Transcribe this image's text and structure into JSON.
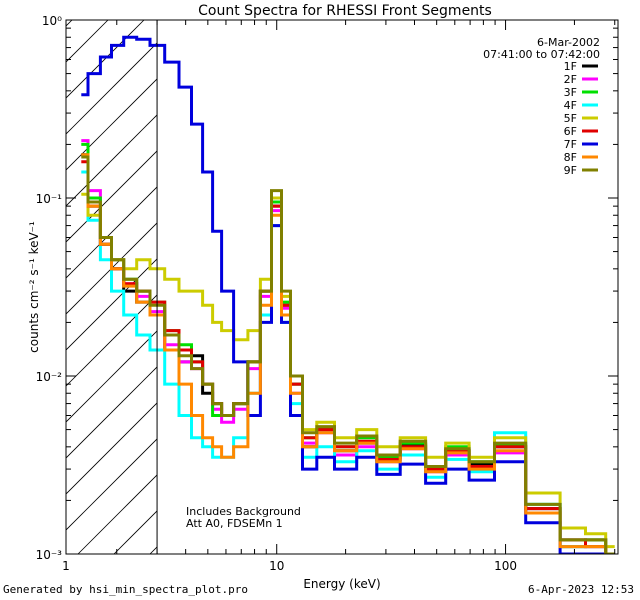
{
  "chart_data": {
    "type": "line",
    "title": "Count Spectra for RHESSI Front Segments",
    "xlabel": "Energy (keV)",
    "ylabel": "counts cm⁻² s⁻¹ keV⁻¹",
    "xscale": "log",
    "yscale": "log",
    "xlim": [
      1.2,
      310
    ],
    "ylim": [
      0.001,
      1.0
    ],
    "x_ticks": [
      "1",
      "10",
      "100"
    ],
    "y_ticks": [
      "10⁻³",
      "10⁻²",
      "10⁻¹",
      "10⁰"
    ],
    "date": "6-Mar-2002",
    "time_range": "07:41:00 to 07:42:00",
    "annotation_line1": "Includes Background",
    "annotation_line2": "Att A0, FDSEMn 1",
    "attenuator_shading_max_kev": 3.0,
    "legend_position": "top-right",
    "series": [
      {
        "name": "1F",
        "color": "#000000",
        "points": [
          [
            1.4,
            0.175
          ],
          [
            1.6,
            0.09
          ],
          [
            1.8,
            0.055
          ],
          [
            2.0,
            0.04
          ],
          [
            2.3,
            0.03
          ],
          [
            2.6,
            0.026
          ],
          [
            3.0,
            0.022
          ],
          [
            3.5,
            0.014
          ],
          [
            4.0,
            0.012
          ],
          [
            4.5,
            0.013
          ],
          [
            5.0,
            0.008
          ],
          [
            5.5,
            0.007
          ],
          [
            6.0,
            0.006
          ],
          [
            7.0,
            0.007
          ],
          [
            8.0,
            0.012
          ],
          [
            9.0,
            0.03
          ],
          [
            10.0,
            0.09
          ],
          [
            11.0,
            0.025
          ],
          [
            12.0,
            0.009
          ],
          [
            14.0,
            0.004
          ],
          [
            16.0,
            0.005
          ],
          [
            20.0,
            0.0038
          ],
          [
            25.0,
            0.0042
          ],
          [
            30.0,
            0.0035
          ],
          [
            40.0,
            0.0041
          ],
          [
            50.0,
            0.003
          ],
          [
            60.0,
            0.0038
          ],
          [
            80.0,
            0.0032
          ],
          [
            100.0,
            0.004
          ],
          [
            150.0,
            0.0018
          ],
          [
            200.0,
            0.0011
          ],
          [
            250.0,
            0.0012
          ],
          [
            300.0,
            0.001
          ]
        ]
      },
      {
        "name": "2F",
        "color": "#ff00ff",
        "points": [
          [
            1.4,
            0.21
          ],
          [
            1.6,
            0.11
          ],
          [
            1.8,
            0.06
          ],
          [
            2.0,
            0.045
          ],
          [
            2.3,
            0.033
          ],
          [
            2.6,
            0.028
          ],
          [
            3.0,
            0.023
          ],
          [
            3.5,
            0.015
          ],
          [
            4.0,
            0.012
          ],
          [
            4.5,
            0.011
          ],
          [
            5.0,
            0.009
          ],
          [
            5.5,
            0.0065
          ],
          [
            6.0,
            0.0055
          ],
          [
            7.0,
            0.0065
          ],
          [
            8.0,
            0.011
          ],
          [
            9.0,
            0.028
          ],
          [
            10.0,
            0.085
          ],
          [
            11.0,
            0.024
          ],
          [
            12.0,
            0.008
          ],
          [
            14.0,
            0.0042
          ],
          [
            16.0,
            0.0048
          ],
          [
            20.0,
            0.0036
          ],
          [
            25.0,
            0.004
          ],
          [
            30.0,
            0.0033
          ],
          [
            40.0,
            0.0039
          ],
          [
            50.0,
            0.0029
          ],
          [
            60.0,
            0.0036
          ],
          [
            80.0,
            0.003
          ],
          [
            100.0,
            0.0037
          ],
          [
            150.0,
            0.0017
          ],
          [
            200.0,
            0.0012
          ],
          [
            250.0,
            0.0011
          ],
          [
            300.0,
            0.001
          ]
        ]
      },
      {
        "name": "3F",
        "color": "#00e000",
        "points": [
          [
            1.4,
            0.2
          ],
          [
            1.6,
            0.1
          ],
          [
            1.8,
            0.06
          ],
          [
            2.0,
            0.045
          ],
          [
            2.3,
            0.035
          ],
          [
            2.6,
            0.03
          ],
          [
            3.0,
            0.026
          ],
          [
            3.5,
            0.018
          ],
          [
            4.0,
            0.015
          ],
          [
            4.5,
            0.012
          ],
          [
            5.0,
            0.009
          ],
          [
            5.5,
            0.006
          ],
          [
            6.0,
            0.006
          ],
          [
            7.0,
            0.007
          ],
          [
            8.0,
            0.012
          ],
          [
            9.0,
            0.03
          ],
          [
            10.0,
            0.095
          ],
          [
            11.0,
            0.026
          ],
          [
            12.0,
            0.009
          ],
          [
            14.0,
            0.0045
          ],
          [
            16.0,
            0.005
          ],
          [
            20.0,
            0.004
          ],
          [
            25.0,
            0.0045
          ],
          [
            30.0,
            0.0035
          ],
          [
            40.0,
            0.0042
          ],
          [
            50.0,
            0.003
          ],
          [
            60.0,
            0.004
          ],
          [
            80.0,
            0.0033
          ],
          [
            100.0,
            0.0041
          ],
          [
            150.0,
            0.0019
          ],
          [
            200.0,
            0.0012
          ],
          [
            250.0,
            0.0012
          ],
          [
            300.0,
            0.001
          ]
        ]
      },
      {
        "name": "4F",
        "color": "#00ffff",
        "points": [
          [
            1.4,
            0.14
          ],
          [
            1.6,
            0.075
          ],
          [
            1.8,
            0.045
          ],
          [
            2.0,
            0.03
          ],
          [
            2.3,
            0.022
          ],
          [
            2.6,
            0.017
          ],
          [
            3.0,
            0.014
          ],
          [
            3.5,
            0.009
          ],
          [
            4.0,
            0.006
          ],
          [
            4.5,
            0.0045
          ],
          [
            5.0,
            0.004
          ],
          [
            5.5,
            0.0035
          ],
          [
            6.0,
            0.0035
          ],
          [
            7.0,
            0.0045
          ],
          [
            8.0,
            0.008
          ],
          [
            9.0,
            0.022
          ],
          [
            10.0,
            0.07
          ],
          [
            11.0,
            0.02
          ],
          [
            12.0,
            0.007
          ],
          [
            14.0,
            0.0035
          ],
          [
            16.0,
            0.004
          ],
          [
            20.0,
            0.0033
          ],
          [
            25.0,
            0.0038
          ],
          [
            30.0,
            0.003
          ],
          [
            40.0,
            0.0036
          ],
          [
            50.0,
            0.0027
          ],
          [
            60.0,
            0.0034
          ],
          [
            80.0,
            0.0029
          ],
          [
            100.0,
            0.0048
          ],
          [
            150.0,
            0.0019
          ],
          [
            200.0,
            0.0011
          ],
          [
            250.0,
            0.0011
          ],
          [
            300.0,
            0.001
          ]
        ]
      },
      {
        "name": "5F",
        "color": "#cccc00",
        "points": [
          [
            1.4,
            0.105
          ],
          [
            1.6,
            0.08
          ],
          [
            1.8,
            0.06
          ],
          [
            2.0,
            0.045
          ],
          [
            2.3,
            0.04
          ],
          [
            2.6,
            0.045
          ],
          [
            3.0,
            0.04
          ],
          [
            3.5,
            0.035
          ],
          [
            4.0,
            0.03
          ],
          [
            4.5,
            0.03
          ],
          [
            5.0,
            0.025
          ],
          [
            5.5,
            0.02
          ],
          [
            6.0,
            0.018
          ],
          [
            7.0,
            0.016
          ],
          [
            8.0,
            0.018
          ],
          [
            9.0,
            0.035
          ],
          [
            10.0,
            0.1
          ],
          [
            11.0,
            0.028
          ],
          [
            12.0,
            0.01
          ],
          [
            14.0,
            0.005
          ],
          [
            16.0,
            0.0055
          ],
          [
            20.0,
            0.0045
          ],
          [
            25.0,
            0.005
          ],
          [
            30.0,
            0.004
          ],
          [
            40.0,
            0.0045
          ],
          [
            50.0,
            0.0035
          ],
          [
            60.0,
            0.0042
          ],
          [
            80.0,
            0.0035
          ],
          [
            100.0,
            0.0045
          ],
          [
            150.0,
            0.0022
          ],
          [
            200.0,
            0.0014
          ],
          [
            250.0,
            0.0013
          ],
          [
            300.0,
            0.0011
          ]
        ]
      },
      {
        "name": "6F",
        "color": "#e00000",
        "points": [
          [
            1.4,
            0.16
          ],
          [
            1.6,
            0.09
          ],
          [
            1.8,
            0.055
          ],
          [
            2.0,
            0.04
          ],
          [
            2.3,
            0.033
          ],
          [
            2.6,
            0.03
          ],
          [
            3.0,
            0.026
          ],
          [
            3.5,
            0.018
          ],
          [
            4.0,
            0.014
          ],
          [
            4.5,
            0.012
          ],
          [
            5.0,
            0.009
          ],
          [
            5.5,
            0.007
          ],
          [
            6.0,
            0.006
          ],
          [
            7.0,
            0.007
          ],
          [
            8.0,
            0.012
          ],
          [
            9.0,
            0.03
          ],
          [
            10.0,
            0.09
          ],
          [
            11.0,
            0.025
          ],
          [
            12.0,
            0.009
          ],
          [
            14.0,
            0.0045
          ],
          [
            16.0,
            0.005
          ],
          [
            20.0,
            0.004
          ],
          [
            25.0,
            0.0043
          ],
          [
            30.0,
            0.0034
          ],
          [
            40.0,
            0.004
          ],
          [
            50.0,
            0.003
          ],
          [
            60.0,
            0.0038
          ],
          [
            80.0,
            0.0031
          ],
          [
            100.0,
            0.004
          ],
          [
            150.0,
            0.0018
          ],
          [
            200.0,
            0.0012
          ],
          [
            250.0,
            0.0011
          ],
          [
            300.0,
            0.001
          ]
        ]
      },
      {
        "name": "7F",
        "color": "#0000dd",
        "points": [
          [
            1.4,
            0.38
          ],
          [
            1.6,
            0.5
          ],
          [
            1.8,
            0.62
          ],
          [
            2.0,
            0.72
          ],
          [
            2.3,
            0.8
          ],
          [
            2.6,
            0.78
          ],
          [
            3.0,
            0.72
          ],
          [
            3.5,
            0.58
          ],
          [
            4.0,
            0.42
          ],
          [
            4.5,
            0.26
          ],
          [
            5.0,
            0.14
          ],
          [
            5.5,
            0.065
          ],
          [
            6.0,
            0.03
          ],
          [
            7.0,
            0.012
          ],
          [
            8.0,
            0.006
          ],
          [
            9.0,
            0.02
          ],
          [
            10.0,
            0.07
          ],
          [
            11.0,
            0.02
          ],
          [
            12.0,
            0.006
          ],
          [
            14.0,
            0.003
          ],
          [
            16.0,
            0.0035
          ],
          [
            20.0,
            0.003
          ],
          [
            25.0,
            0.0035
          ],
          [
            30.0,
            0.0028
          ],
          [
            40.0,
            0.0032
          ],
          [
            50.0,
            0.0025
          ],
          [
            60.0,
            0.003
          ],
          [
            80.0,
            0.0026
          ],
          [
            100.0,
            0.0033
          ],
          [
            150.0,
            0.0015
          ],
          [
            200.0,
            0.001
          ],
          [
            250.0,
            0.001
          ],
          [
            300.0,
            0.001
          ]
        ]
      },
      {
        "name": "8F",
        "color": "#ff8800",
        "points": [
          [
            1.4,
            0.175
          ],
          [
            1.6,
            0.09
          ],
          [
            1.8,
            0.055
          ],
          [
            2.0,
            0.04
          ],
          [
            2.3,
            0.032
          ],
          [
            2.6,
            0.026
          ],
          [
            3.0,
            0.022
          ],
          [
            3.5,
            0.014
          ],
          [
            4.0,
            0.009
          ],
          [
            4.5,
            0.006
          ],
          [
            5.0,
            0.0045
          ],
          [
            5.5,
            0.004
          ],
          [
            6.0,
            0.0035
          ],
          [
            7.0,
            0.004
          ],
          [
            8.0,
            0.008
          ],
          [
            9.0,
            0.025
          ],
          [
            10.0,
            0.08
          ],
          [
            11.0,
            0.022
          ],
          [
            12.0,
            0.008
          ],
          [
            14.0,
            0.004
          ],
          [
            16.0,
            0.0048
          ],
          [
            20.0,
            0.0038
          ],
          [
            25.0,
            0.0042
          ],
          [
            30.0,
            0.0033
          ],
          [
            40.0,
            0.0039
          ],
          [
            50.0,
            0.0029
          ],
          [
            60.0,
            0.0037
          ],
          [
            80.0,
            0.003
          ],
          [
            100.0,
            0.0038
          ],
          [
            150.0,
            0.0017
          ],
          [
            200.0,
            0.0011
          ],
          [
            250.0,
            0.0011
          ],
          [
            300.0,
            0.001
          ]
        ]
      },
      {
        "name": "9F",
        "color": "#808000",
        "points": [
          [
            1.4,
            0.17
          ],
          [
            1.6,
            0.095
          ],
          [
            1.8,
            0.06
          ],
          [
            2.0,
            0.045
          ],
          [
            2.3,
            0.035
          ],
          [
            2.6,
            0.03
          ],
          [
            3.0,
            0.025
          ],
          [
            3.5,
            0.017
          ],
          [
            4.0,
            0.013
          ],
          [
            4.5,
            0.011
          ],
          [
            5.0,
            0.009
          ],
          [
            5.5,
            0.007
          ],
          [
            6.0,
            0.006
          ],
          [
            7.0,
            0.007
          ],
          [
            8.0,
            0.012
          ],
          [
            9.0,
            0.03
          ],
          [
            10.0,
            0.11
          ],
          [
            11.0,
            0.03
          ],
          [
            12.0,
            0.01
          ],
          [
            14.0,
            0.0048
          ],
          [
            16.0,
            0.0052
          ],
          [
            20.0,
            0.0042
          ],
          [
            25.0,
            0.0046
          ],
          [
            30.0,
            0.0036
          ],
          [
            40.0,
            0.0043
          ],
          [
            50.0,
            0.0031
          ],
          [
            60.0,
            0.0039
          ],
          [
            80.0,
            0.0033
          ],
          [
            100.0,
            0.0042
          ],
          [
            150.0,
            0.0019
          ],
          [
            200.0,
            0.0012
          ],
          [
            250.0,
            0.0012
          ],
          [
            300.0,
            0.001
          ]
        ]
      }
    ]
  },
  "footer": {
    "left": "Generated by hsi_min_spectra_plot.pro",
    "right": "6-Apr-2023 12:53"
  }
}
